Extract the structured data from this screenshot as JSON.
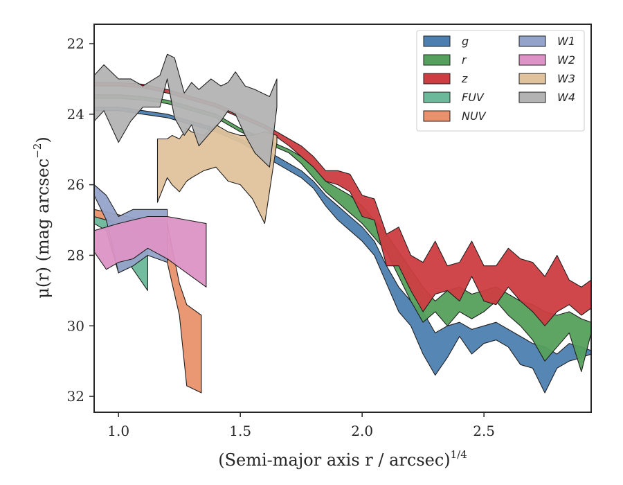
{
  "chart_data": {
    "type": "area",
    "xlabel": "(Semi-major axis r / arcsec)",
    "xlabel_superscript": "1/4",
    "ylabel": "μ(r) (mag arcsec",
    "ylabel_superscript": "−2",
    "ylabel_suffix": ")",
    "xlim": [
      0.9,
      2.94
    ],
    "ylim": [
      32.45,
      21.45
    ],
    "y_inverted": true,
    "xticks": [
      1.0,
      1.5,
      2.0,
      2.5
    ],
    "xtick_labels": [
      "1.0",
      "1.5",
      "2.0",
      "2.5"
    ],
    "yticks": [
      22,
      24,
      26,
      28,
      30,
      32
    ],
    "ytick_labels": [
      "22",
      "24",
      "26",
      "28",
      "30",
      "32"
    ],
    "grid": false,
    "legend_position": "top-right",
    "legend_columns": 2,
    "series": [
      {
        "name": "g",
        "color": "#4c7fb0",
        "x": [
          0.9,
          1.0,
          1.1,
          1.2,
          1.3,
          1.4,
          1.5,
          1.6,
          1.7,
          1.75,
          1.8,
          1.85,
          1.9,
          1.95,
          2.0,
          2.05,
          2.1,
          2.15,
          2.2,
          2.25,
          2.3,
          2.35,
          2.4,
          2.45,
          2.5,
          2.55,
          2.6,
          2.65,
          2.7,
          2.75,
          2.8,
          2.85,
          2.9,
          2.94
        ],
        "lower": [
          23.8,
          23.8,
          23.9,
          24.0,
          24.2,
          24.4,
          24.7,
          25.0,
          25.4,
          25.6,
          25.9,
          26.3,
          26.6,
          26.9,
          27.2,
          27.6,
          28.3,
          28.9,
          29.3,
          29.6,
          30.2,
          30.0,
          29.9,
          30.1,
          30.0,
          29.9,
          30.1,
          30.3,
          30.5,
          30.6,
          30.8,
          30.5,
          30.6,
          30.7
        ],
        "upper": [
          23.9,
          23.9,
          24.0,
          24.1,
          24.3,
          24.5,
          24.8,
          25.2,
          25.6,
          25.8,
          26.1,
          26.6,
          27.0,
          27.3,
          27.6,
          28.0,
          28.8,
          29.6,
          30.0,
          30.8,
          31.4,
          30.9,
          30.3,
          30.8,
          30.5,
          30.4,
          30.6,
          31.1,
          31.2,
          31.9,
          31.2,
          31.0,
          30.9,
          30.8
        ]
      },
      {
        "name": "r",
        "color": "#55a05c",
        "x": [
          0.9,
          1.0,
          1.1,
          1.2,
          1.3,
          1.4,
          1.5,
          1.6,
          1.7,
          1.75,
          1.8,
          1.85,
          1.9,
          1.95,
          2.0,
          2.05,
          2.1,
          2.15,
          2.2,
          2.25,
          2.3,
          2.35,
          2.4,
          2.45,
          2.5,
          2.55,
          2.6,
          2.65,
          2.7,
          2.75,
          2.8,
          2.85,
          2.9,
          2.94
        ],
        "lower": [
          23.45,
          23.45,
          23.5,
          23.6,
          23.8,
          24.0,
          24.4,
          24.7,
          25.0,
          25.2,
          25.5,
          25.9,
          26.1,
          26.3,
          26.6,
          27.0,
          27.4,
          27.9,
          28.4,
          28.9,
          29.3,
          29.0,
          28.9,
          29.1,
          29.0,
          28.9,
          29.1,
          29.3,
          29.4,
          29.6,
          29.7,
          29.6,
          29.8,
          29.9
        ],
        "upper": [
          23.55,
          23.55,
          23.6,
          23.7,
          23.9,
          24.1,
          24.5,
          24.8,
          25.1,
          25.4,
          25.8,
          26.2,
          26.5,
          26.8,
          27.1,
          27.5,
          27.9,
          28.6,
          29.3,
          29.9,
          29.6,
          30.0,
          29.6,
          29.8,
          29.6,
          29.3,
          29.7,
          30.0,
          30.4,
          31.0,
          30.6,
          30.2,
          31.3,
          30.2
        ]
      },
      {
        "name": "z",
        "color": "#cd3d41",
        "x": [
          0.9,
          1.0,
          1.1,
          1.2,
          1.3,
          1.4,
          1.5,
          1.6,
          1.7,
          1.75,
          1.8,
          1.85,
          1.9,
          1.95,
          2.0,
          2.05,
          2.1,
          2.15,
          2.2,
          2.25,
          2.3,
          2.35,
          2.4,
          2.45,
          2.5,
          2.55,
          2.6,
          2.65,
          2.7,
          2.75,
          2.8,
          2.85,
          2.9,
          2.94
        ],
        "lower": [
          23.1,
          23.1,
          23.15,
          23.3,
          23.5,
          23.7,
          24.0,
          24.3,
          24.7,
          24.9,
          25.2,
          25.6,
          25.6,
          25.7,
          26.3,
          26.4,
          27.4,
          27.2,
          28.0,
          28.2,
          27.6,
          28.3,
          28.2,
          27.6,
          28.3,
          28.3,
          27.8,
          28.1,
          28.2,
          28.6,
          28.0,
          28.7,
          28.9,
          28.7
        ],
        "upper": [
          23.2,
          23.2,
          23.25,
          23.4,
          23.6,
          23.8,
          24.1,
          24.4,
          24.9,
          25.2,
          25.5,
          25.9,
          26.0,
          26.2,
          26.9,
          27.0,
          28.3,
          28.3,
          29.0,
          29.6,
          29.1,
          29.0,
          29.3,
          28.6,
          29.3,
          29.4,
          28.9,
          29.3,
          29.6,
          30.0,
          29.6,
          29.4,
          29.7,
          29.5
        ]
      },
      {
        "name": "FUV",
        "color": "#6bb89a",
        "x": [
          0.9,
          0.95,
          1.0,
          1.05,
          1.12
        ],
        "lower": [
          26.9,
          27.0,
          27.2,
          27.3,
          27.3
        ],
        "upper": [
          27.1,
          27.3,
          28.5,
          28.3,
          29.0
        ]
      },
      {
        "name": "NUV",
        "color": "#e9916c",
        "x": [
          0.9,
          1.0,
          1.1,
          1.2,
          1.25,
          1.28,
          1.34
        ],
        "lower": [
          26.7,
          26.85,
          27.0,
          27.1,
          28.8,
          29.4,
          29.7
        ],
        "upper": [
          26.9,
          27.1,
          27.5,
          28.2,
          29.7,
          31.7,
          31.9
        ]
      },
      {
        "name": "W1",
        "color": "#93a3c9",
        "x": [
          0.9,
          0.95,
          1.0,
          1.06,
          1.12,
          1.2
        ],
        "lower": [
          26.0,
          26.3,
          26.9,
          26.7,
          26.7,
          26.7
        ],
        "upper": [
          26.3,
          27.0,
          28.5,
          28.3,
          28.0,
          28.2
        ]
      },
      {
        "name": "W2",
        "color": "#dd93c6",
        "x": [
          0.9,
          0.95,
          1.0,
          1.06,
          1.12,
          1.2,
          1.28,
          1.36
        ],
        "lower": [
          27.3,
          27.2,
          27.1,
          27.0,
          26.9,
          26.9,
          27.0,
          27.1
        ],
        "upper": [
          27.9,
          28.4,
          28.2,
          28.1,
          27.8,
          28.1,
          28.5,
          28.9
        ]
      },
      {
        "name": "W3",
        "color": "#e0c39c",
        "x": [
          1.16,
          1.2,
          1.22,
          1.25,
          1.28,
          1.3,
          1.35,
          1.4,
          1.45,
          1.5,
          1.55,
          1.6,
          1.65
        ],
        "lower": [
          24.7,
          24.7,
          24.6,
          24.7,
          24.4,
          24.5,
          24.6,
          24.3,
          24.5,
          24.6,
          24.6,
          24.5,
          24.6
        ],
        "upper": [
          26.5,
          25.8,
          26.0,
          26.2,
          25.9,
          25.8,
          25.6,
          25.5,
          25.9,
          26.0,
          26.4,
          27.1,
          24.8
        ]
      },
      {
        "name": "W4",
        "color": "#b3b3b3",
        "x": [
          0.9,
          0.94,
          1.0,
          1.05,
          1.1,
          1.17,
          1.2,
          1.23,
          1.27,
          1.3,
          1.33,
          1.38,
          1.42,
          1.45,
          1.48,
          1.52,
          1.56,
          1.62,
          1.65
        ],
        "lower": [
          22.9,
          22.6,
          23.0,
          23.0,
          23.2,
          22.9,
          22.3,
          22.4,
          23.4,
          23.1,
          23.3,
          23.0,
          23.2,
          23.1,
          22.8,
          23.2,
          23.3,
          23.5,
          23.0
        ],
        "upper": [
          24.2,
          23.9,
          24.8,
          24.2,
          23.8,
          23.8,
          23.0,
          24.1,
          24.6,
          24.3,
          24.9,
          24.5,
          24.2,
          23.9,
          24.0,
          24.6,
          25.1,
          25.5,
          23.8
        ]
      }
    ]
  }
}
